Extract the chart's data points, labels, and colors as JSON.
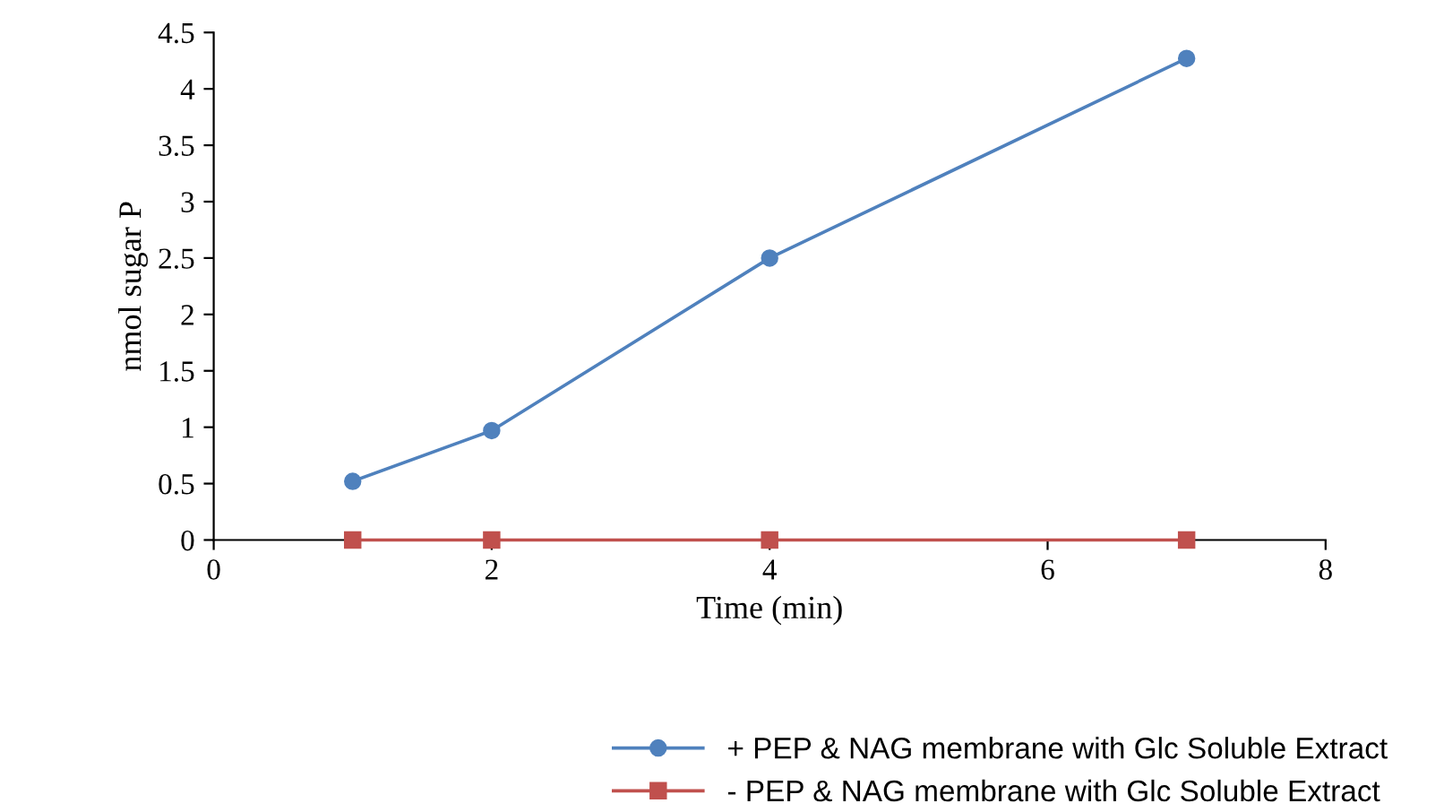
{
  "chart_data": {
    "type": "line",
    "xlabel": "Time (min)",
    "ylabel": "nmol sugar P",
    "x": [
      1,
      2,
      4,
      7
    ],
    "series": [
      {
        "name": "+ PEP & NAG membrane with Glc Soluble Extract",
        "color": "#4f81bd",
        "marker": "circle",
        "values": [
          0.52,
          0.97,
          2.5,
          4.27
        ]
      },
      {
        "name": "- PEP & NAG membrane with Glc Soluble Extract",
        "color": "#c0504d",
        "marker": "square",
        "values": [
          0,
          0,
          0,
          0
        ]
      }
    ],
    "xlim": [
      0,
      8
    ],
    "xticks": [
      0,
      2,
      4,
      6,
      8
    ],
    "ylim": [
      0,
      4.5
    ],
    "yticks": [
      0,
      0.5,
      1,
      1.5,
      2,
      2.5,
      3,
      3.5,
      4,
      4.5
    ],
    "grid": false,
    "legend": "bottom right",
    "line_style": "solid"
  }
}
